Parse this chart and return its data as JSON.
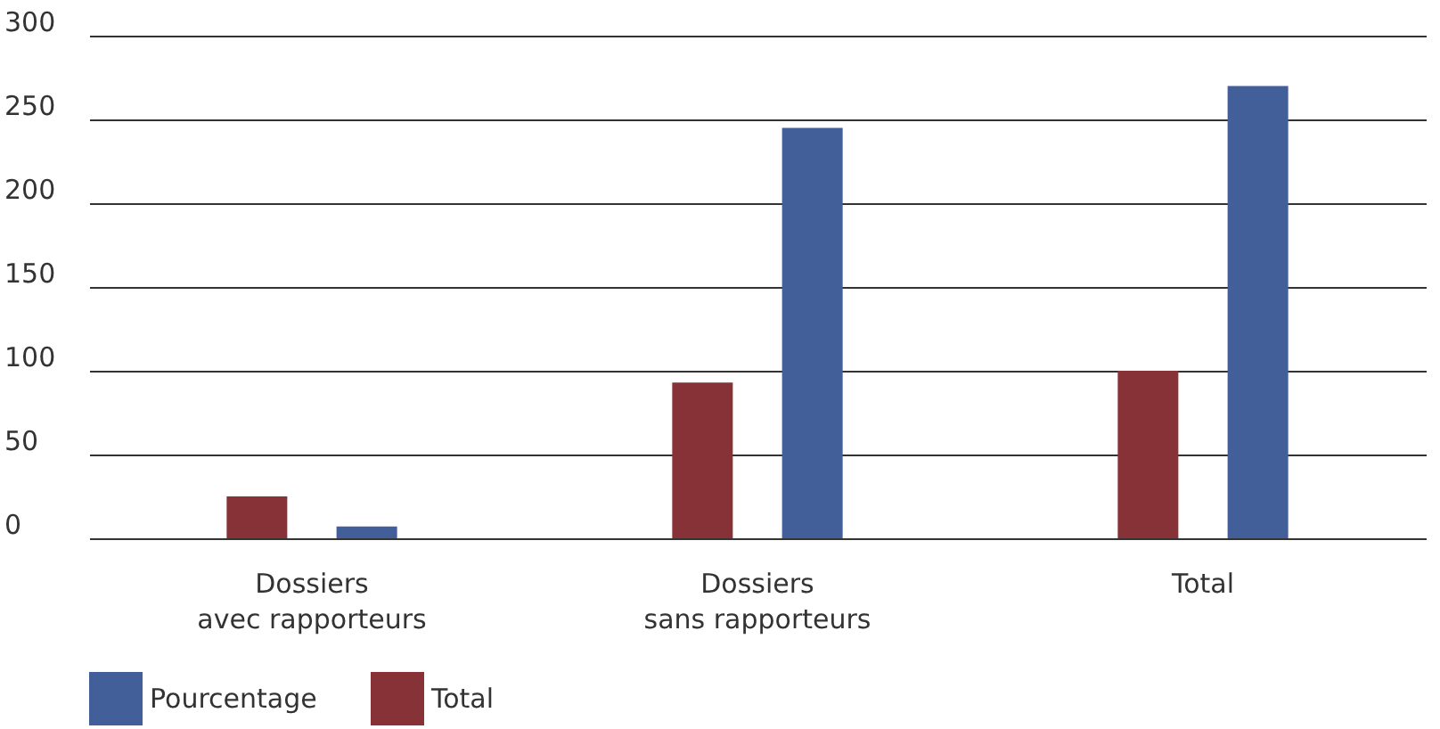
{
  "chart_data": {
    "type": "bar",
    "categories": [
      "Dossiers avec rapporteurs",
      "Dossiers sans rapporteurs",
      "Total"
    ],
    "series": [
      {
        "name": "Total",
        "color": "#873237",
        "values": [
          25,
          93,
          100
        ]
      },
      {
        "name": "Pourcentage",
        "color": "#435f9a",
        "values": [
          7,
          245,
          270
        ]
      }
    ],
    "ylim": [
      0,
      300
    ],
    "yticks": [
      0,
      50,
      100,
      150,
      200,
      250,
      300
    ],
    "grid": "y",
    "legend": "bottom left"
  }
}
